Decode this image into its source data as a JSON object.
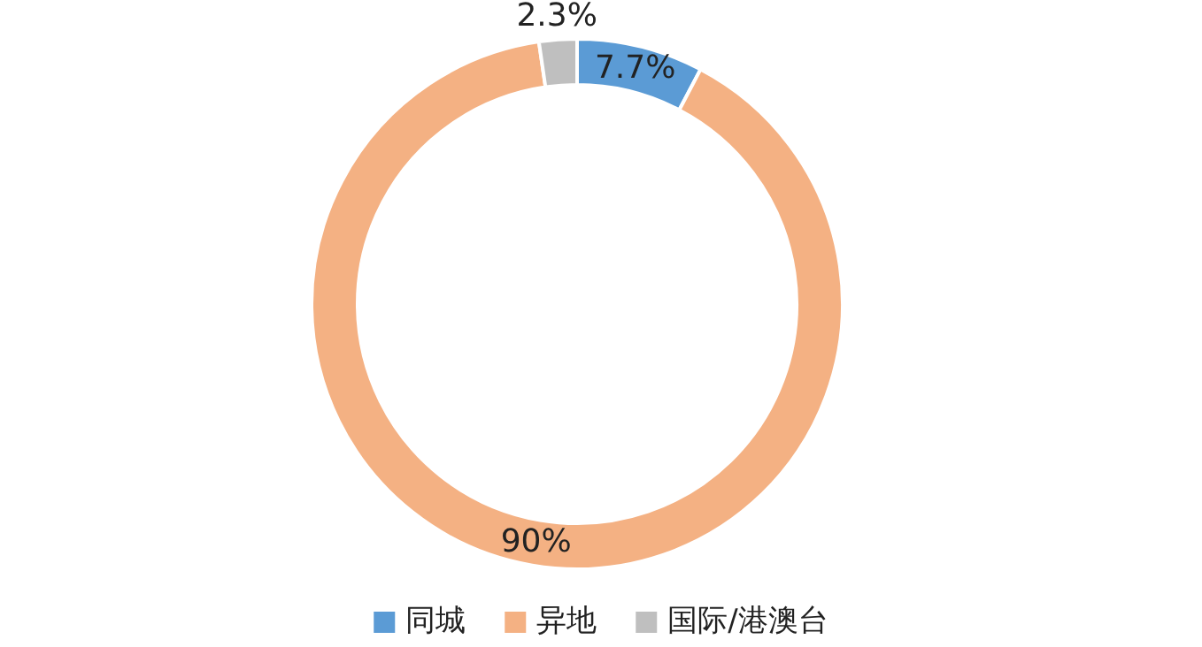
{
  "chart_data": {
    "type": "donut",
    "categories": [
      "同城",
      "异地",
      "国际/港澳台"
    ],
    "values": [
      7.7,
      90,
      2.3
    ],
    "colors": [
      "#5b9bd5",
      "#f4b183",
      "#bfbfbf"
    ],
    "value_labels": [
      "7.7%",
      "90%",
      "2.3%"
    ],
    "legend": "bottom"
  }
}
